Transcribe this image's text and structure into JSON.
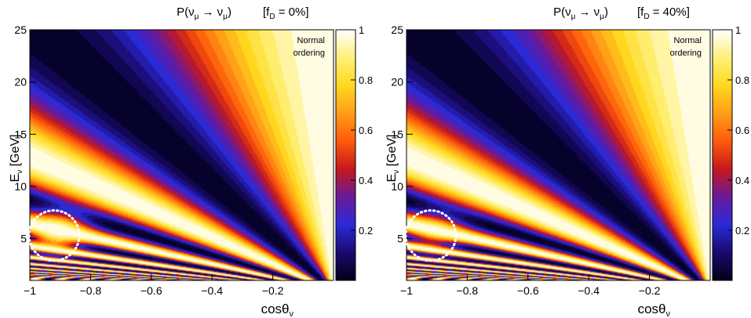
{
  "colors": {
    "colormap_stops": [
      "#000018",
      "#1a0a6e",
      "#2a2ad8",
      "#6a1a9a",
      "#c4181e",
      "#ff5a0a",
      "#ff9e18",
      "#ffd81e",
      "#fff07a",
      "#ffffff"
    ],
    "annotation_circle": "#ffffff",
    "axis": "#000000"
  },
  "chart_data": [
    {
      "type": "heatmap",
      "title_prefix": "P(ν",
      "title_sub1": "μ",
      "title_arrow": " → ν",
      "title_sub2": "μ",
      "title_close": ")",
      "label_prefix": "[f",
      "label_sub": "D",
      "label_value": " = 0%]",
      "xlabel_main": "cosθ",
      "xlabel_sub": "ν",
      "ylabel_main": "E",
      "ylabel_sub": "ν",
      "ylabel_unit": " [GeV]",
      "xlim": [
        -1,
        0
      ],
      "ylim": [
        1,
        25
      ],
      "zlim": [
        0,
        1
      ],
      "x_ticks": [
        -1,
        -0.8,
        -0.6,
        -0.4,
        -0.2
      ],
      "x_tick_labels": [
        "−1",
        "−0.8",
        "−0.6",
        "−0.4",
        "−0.2"
      ],
      "y_ticks": [
        5,
        10,
        15,
        20,
        25
      ],
      "y_tick_labels": [
        "5",
        "10",
        "15",
        "20",
        "25"
      ],
      "z_ticks": [
        0.2,
        0.4,
        0.6,
        0.8,
        1
      ],
      "z_tick_labels": [
        "0.2",
        "0.4",
        "0.6",
        "0.8",
        "1"
      ],
      "annotation_lines": [
        "Normal",
        "ordering"
      ],
      "decoherence_fraction": 0.0,
      "highlight_region": {
        "cos_theta": -0.92,
        "energy_gev": 5.3
      },
      "z_function": "P = 1 − sin²(2θ₂₃)·sin²(1.267·Δm²·L/E), L = 12742·|cosθ| km, Δm² = 2.5e-3 eV², with matter-induced resonance feature near E≈5–7 GeV, cosθ≈−0.9"
    },
    {
      "type": "heatmap",
      "title_prefix": "P(ν",
      "title_sub1": "μ",
      "title_arrow": " → ν",
      "title_sub2": "μ",
      "title_close": ")",
      "label_prefix": "[f",
      "label_sub": "D",
      "label_value": " = 40%]",
      "xlabel_main": "cosθ",
      "xlabel_sub": "ν",
      "ylabel_main": "E",
      "ylabel_sub": "ν",
      "ylabel_unit": " [GeV]",
      "xlim": [
        -1,
        0
      ],
      "ylim": [
        1,
        25
      ],
      "zlim": [
        0,
        1
      ],
      "x_ticks": [
        -1,
        -0.8,
        -0.6,
        -0.4,
        -0.2
      ],
      "x_tick_labels": [
        "−1",
        "−0.8",
        "−0.6",
        "−0.4",
        "−0.2"
      ],
      "y_ticks": [
        5,
        10,
        15,
        20,
        25
      ],
      "y_tick_labels": [
        "5",
        "10",
        "15",
        "20",
        "25"
      ],
      "z_ticks": [
        0.2,
        0.4,
        0.6,
        0.8,
        1
      ],
      "z_tick_labels": [
        "0.2",
        "0.4",
        "0.6",
        "0.8",
        "1"
      ],
      "annotation_lines": [
        "Normal",
        "ordering"
      ],
      "decoherence_fraction": 0.4,
      "highlight_region": {
        "cos_theta": -0.92,
        "energy_gev": 5.3
      },
      "z_function": "same as left panel, with resonance feature suppressed by decoherence fraction"
    }
  ]
}
